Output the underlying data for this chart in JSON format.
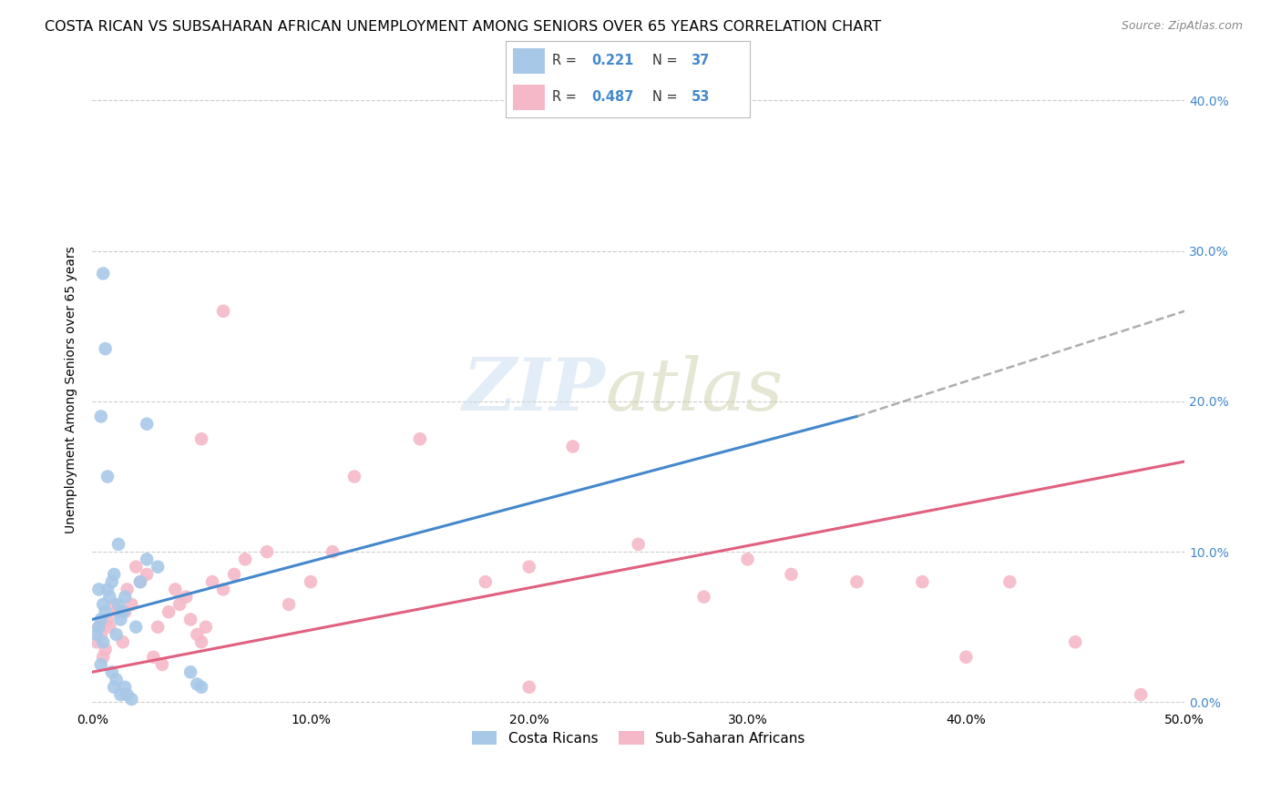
{
  "title": "COSTA RICAN VS SUBSAHARAN AFRICAN UNEMPLOYMENT AMONG SENIORS OVER 65 YEARS CORRELATION CHART",
  "source": "Source: ZipAtlas.com",
  "ylabel": "Unemployment Among Seniors over 65 years",
  "xlim": [
    0.0,
    50.0
  ],
  "ylim": [
    -0.5,
    42.0
  ],
  "xticks": [
    0.0,
    10.0,
    20.0,
    30.0,
    40.0,
    50.0
  ],
  "yticks": [
    0.0,
    10.0,
    20.0,
    30.0,
    40.0
  ],
  "xtick_labels": [
    "0.0%",
    "10.0%",
    "20.0%",
    "30.0%",
    "40.0%",
    "50.0%"
  ],
  "ytick_labels_right": [
    "0.0%",
    "10.0%",
    "20.0%",
    "30.0%",
    "40.0%"
  ],
  "cr_color": "#a8c8e8",
  "ssa_color": "#f5b8c8",
  "cr_line_color": "#4488cc",
  "ssa_line_color": "#e06080",
  "cr_R": 0.221,
  "cr_N": 37,
  "ssa_R": 0.487,
  "ssa_N": 53,
  "watermark_zip": "ZIP",
  "watermark_atlas": "atlas",
  "legend_label_cr": "Costa Ricans",
  "legend_label_ssa": "Sub-Saharan Africans",
  "cr_x": [
    0.2,
    0.3,
    0.4,
    0.5,
    0.5,
    0.6,
    0.7,
    0.8,
    0.9,
    1.0,
    1.1,
    1.2,
    1.3,
    1.4,
    1.5,
    0.3,
    0.4,
    0.5,
    0.6,
    0.7,
    0.9,
    1.0,
    1.1,
    1.2,
    1.3,
    1.5,
    1.6,
    1.8,
    2.0,
    2.2,
    2.5,
    3.0,
    2.5,
    4.5,
    5.0,
    4.8,
    0.4
  ],
  "cr_y": [
    4.5,
    5.0,
    5.5,
    6.5,
    4.0,
    6.0,
    7.5,
    7.0,
    8.0,
    8.5,
    4.5,
    6.5,
    5.5,
    6.0,
    7.0,
    7.5,
    19.0,
    28.5,
    23.5,
    15.0,
    2.0,
    1.0,
    1.5,
    10.5,
    0.5,
    1.0,
    0.5,
    0.2,
    5.0,
    8.0,
    9.5,
    9.0,
    18.5,
    2.0,
    1.0,
    1.2,
    2.5
  ],
  "ssa_x": [
    0.2,
    0.3,
    0.4,
    0.5,
    0.6,
    0.7,
    0.8,
    1.0,
    1.2,
    1.4,
    1.5,
    1.6,
    1.8,
    2.0,
    2.2,
    2.5,
    2.8,
    3.0,
    3.2,
    3.5,
    3.8,
    4.0,
    4.3,
    4.5,
    4.8,
    5.0,
    5.2,
    5.5,
    6.0,
    6.5,
    7.0,
    8.0,
    9.0,
    10.0,
    11.0,
    12.0,
    15.0,
    18.0,
    20.0,
    22.0,
    25.0,
    28.0,
    30.0,
    32.0,
    35.0,
    38.0,
    40.0,
    42.0,
    45.0,
    48.0,
    5.0,
    6.0,
    20.0
  ],
  "ssa_y": [
    4.0,
    5.0,
    4.5,
    3.0,
    3.5,
    5.5,
    5.0,
    6.5,
    6.0,
    4.0,
    6.0,
    7.5,
    6.5,
    9.0,
    8.0,
    8.5,
    3.0,
    5.0,
    2.5,
    6.0,
    7.5,
    6.5,
    7.0,
    5.5,
    4.5,
    4.0,
    5.0,
    8.0,
    7.5,
    8.5,
    9.5,
    10.0,
    6.5,
    8.0,
    10.0,
    15.0,
    17.5,
    8.0,
    9.0,
    17.0,
    10.5,
    7.0,
    9.5,
    8.5,
    8.0,
    8.0,
    3.0,
    8.0,
    4.0,
    0.5,
    17.5,
    26.0,
    1.0
  ],
  "background_color": "#ffffff",
  "grid_color": "#cccccc",
  "title_fontsize": 11.5,
  "axis_label_fontsize": 10,
  "tick_fontsize": 10,
  "cr_line_x0": 0.0,
  "cr_line_x1": 35.0,
  "cr_line_y0": 5.5,
  "cr_line_y1": 19.0,
  "cr_dash_x0": 35.0,
  "cr_dash_x1": 50.0,
  "cr_dash_y0": 19.0,
  "cr_dash_y1": 26.0,
  "ssa_line_x0": 0.0,
  "ssa_line_x1": 50.0,
  "ssa_line_y0": 2.0,
  "ssa_line_y1": 16.0
}
